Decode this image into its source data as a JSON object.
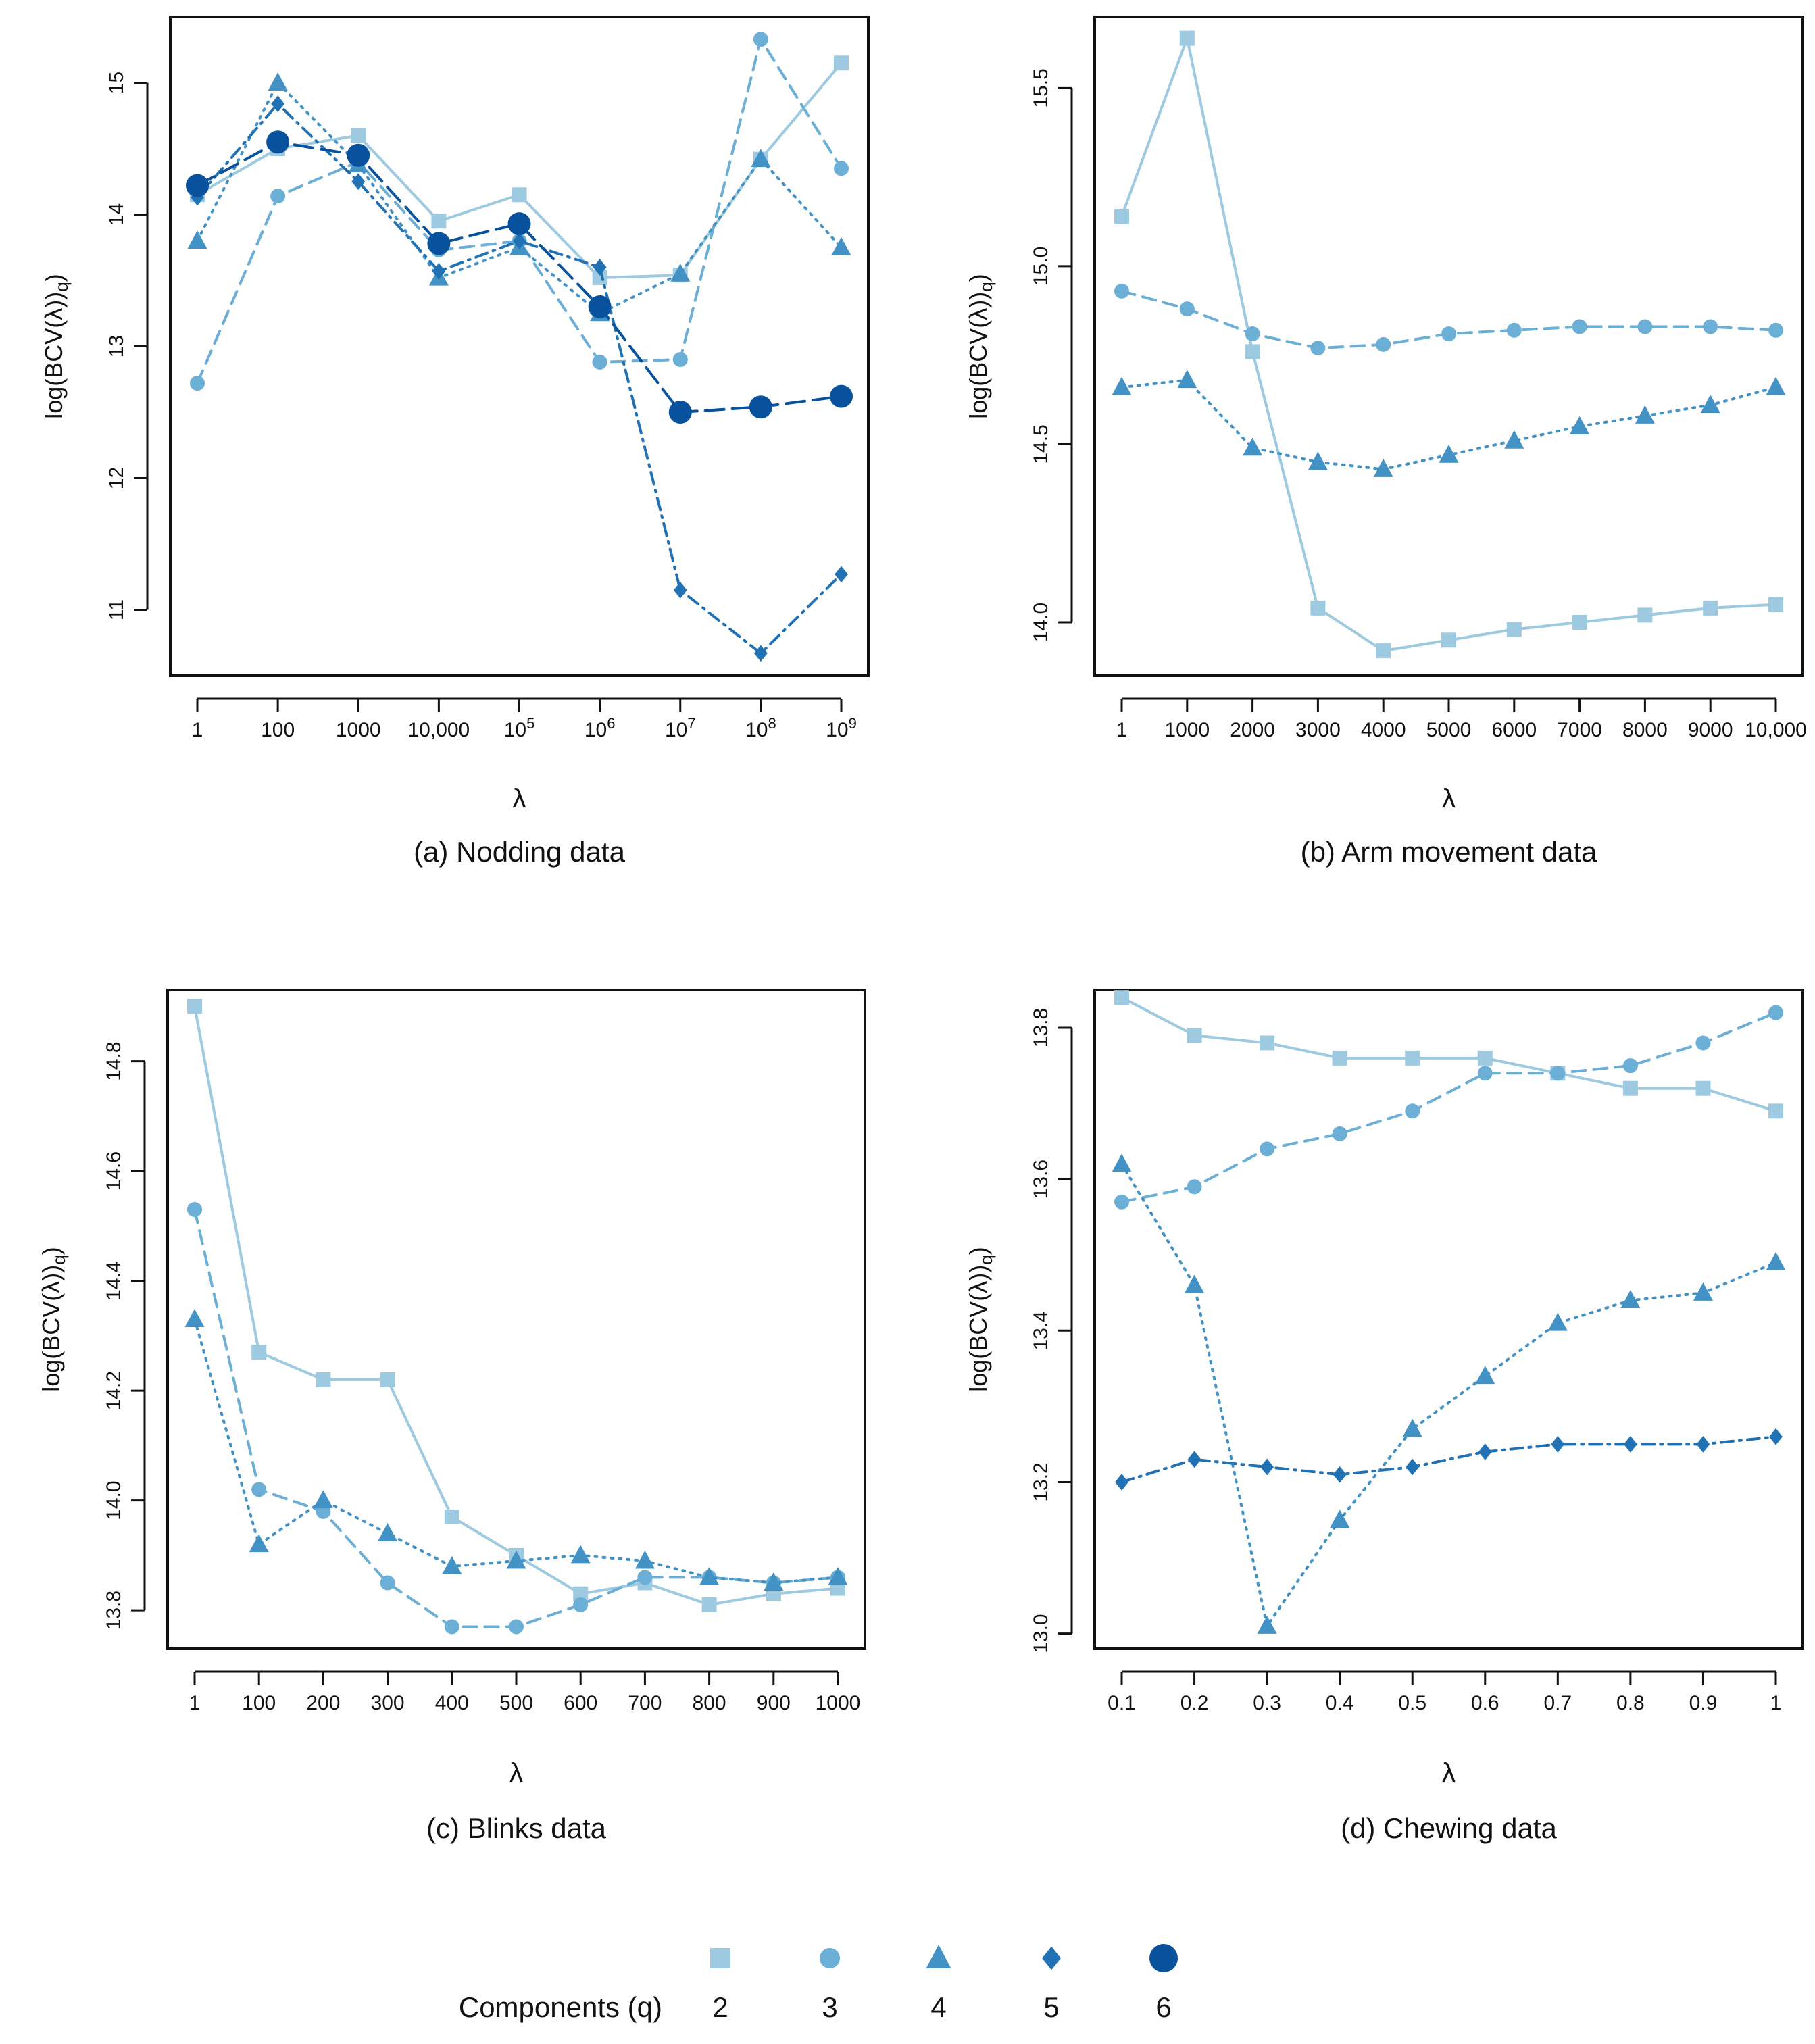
{
  "figure": {
    "legend_title": "Components (q)",
    "legend_entries": [
      {
        "q": "2",
        "marker": "square",
        "color": "#9ecae1"
      },
      {
        "q": "3",
        "marker": "circle",
        "color": "#6baed6"
      },
      {
        "q": "4",
        "marker": "triangle",
        "color": "#4292c6"
      },
      {
        "q": "5",
        "marker": "diamond",
        "color": "#2171b5"
      },
      {
        "q": "6",
        "marker": "big-circle",
        "color": "#08519c"
      }
    ],
    "y_axis_label_base": "log(BCV(λ)",
    "y_axis_label_sub": "q",
    "y_axis_label_close": ")"
  },
  "chart_data": [
    {
      "type": "line",
      "caption": "(a) Nodding data",
      "xlabel": "λ",
      "ylabel": "log(BCV(λ)q)",
      "ylim": [
        10.5,
        15.5
      ],
      "yticks": [
        "11",
        "12",
        "13",
        "14",
        "15"
      ],
      "ytick_values": [
        11,
        12,
        13,
        14,
        15
      ],
      "x_ticks": [
        {
          "base": "1",
          "exp": ""
        },
        {
          "base": "100",
          "exp": ""
        },
        {
          "base": "1000",
          "exp": ""
        },
        {
          "base": "10,000",
          "exp": ""
        },
        {
          "base": "10",
          "exp": "5"
        },
        {
          "base": "10",
          "exp": "6"
        },
        {
          "base": "10",
          "exp": "7"
        },
        {
          "base": "10",
          "exp": "8"
        },
        {
          "base": "10",
          "exp": "9"
        }
      ],
      "series": [
        {
          "q": "2",
          "values": [
            14.15,
            14.5,
            14.6,
            13.95,
            14.15,
            13.52,
            13.54,
            14.42,
            15.15
          ]
        },
        {
          "q": "3",
          "values": [
            12.72,
            14.14,
            14.4,
            13.73,
            13.8,
            12.88,
            12.9,
            15.33,
            14.35
          ]
        },
        {
          "q": "4",
          "values": [
            13.8,
            15.0,
            14.38,
            13.52,
            13.75,
            13.25,
            13.55,
            14.42,
            13.75
          ]
        },
        {
          "q": "5",
          "values": [
            14.13,
            14.84,
            14.25,
            13.57,
            13.8,
            13.6,
            11.15,
            10.67,
            11.27
          ]
        },
        {
          "q": "6",
          "values": [
            14.22,
            14.55,
            14.45,
            13.78,
            13.93,
            13.3,
            12.5,
            12.54,
            12.62
          ]
        }
      ]
    },
    {
      "type": "line",
      "caption": "(b) Arm movement data",
      "xlabel": "λ",
      "ylabel": "log(BCV(λ)q)",
      "ylim": [
        13.85,
        15.7
      ],
      "yticks": [
        "14.0",
        "14.5",
        "15.0",
        "15.5"
      ],
      "ytick_values": [
        14.0,
        14.5,
        15.0,
        15.5
      ],
      "x_ticks": [
        {
          "base": "1",
          "exp": ""
        },
        {
          "base": "1000",
          "exp": ""
        },
        {
          "base": "2000",
          "exp": ""
        },
        {
          "base": "3000",
          "exp": ""
        },
        {
          "base": "4000",
          "exp": ""
        },
        {
          "base": "5000",
          "exp": ""
        },
        {
          "base": "6000",
          "exp": ""
        },
        {
          "base": "7000",
          "exp": ""
        },
        {
          "base": "8000",
          "exp": ""
        },
        {
          "base": "9000",
          "exp": ""
        },
        {
          "base": "10,000",
          "exp": ""
        }
      ],
      "series": [
        {
          "q": "2",
          "values": [
            15.14,
            15.64,
            14.76,
            14.04,
            13.92,
            13.95,
            13.98,
            14.0,
            14.02,
            14.04,
            14.05
          ]
        },
        {
          "q": "3",
          "values": [
            14.93,
            14.88,
            14.81,
            14.77,
            14.78,
            14.81,
            14.82,
            14.83,
            14.83,
            14.83,
            14.82
          ]
        },
        {
          "q": "4",
          "values": [
            14.66,
            14.68,
            14.49,
            14.45,
            14.43,
            14.47,
            14.51,
            14.55,
            14.58,
            14.61,
            14.66
          ]
        }
      ]
    },
    {
      "type": "line",
      "caption": "(c) Blinks data",
      "xlabel": "λ",
      "ylabel": "log(BCV(λ)q)",
      "ylim": [
        13.73,
        14.93
      ],
      "yticks": [
        "13.8",
        "14.0",
        "14.2",
        "14.4",
        "14.6",
        "14.8"
      ],
      "ytick_values": [
        13.8,
        14.0,
        14.2,
        14.4,
        14.6,
        14.8
      ],
      "x_ticks": [
        {
          "base": "1",
          "exp": ""
        },
        {
          "base": "100",
          "exp": ""
        },
        {
          "base": "200",
          "exp": ""
        },
        {
          "base": "300",
          "exp": ""
        },
        {
          "base": "400",
          "exp": ""
        },
        {
          "base": "500",
          "exp": ""
        },
        {
          "base": "600",
          "exp": ""
        },
        {
          "base": "700",
          "exp": ""
        },
        {
          "base": "800",
          "exp": ""
        },
        {
          "base": "900",
          "exp": ""
        },
        {
          "base": "1000",
          "exp": ""
        }
      ],
      "series": [
        {
          "q": "2",
          "values": [
            14.9,
            14.27,
            14.22,
            14.22,
            13.97,
            13.9,
            13.83,
            13.85,
            13.81,
            13.83,
            13.84
          ]
        },
        {
          "q": "3",
          "values": [
            14.53,
            14.02,
            13.98,
            13.85,
            13.77,
            13.77,
            13.81,
            13.86,
            13.86,
            13.85,
            13.86
          ]
        },
        {
          "q": "4",
          "values": [
            14.33,
            13.92,
            14.0,
            13.94,
            13.88,
            13.89,
            13.9,
            13.89,
            13.86,
            13.85,
            13.86
          ]
        }
      ]
    },
    {
      "type": "line",
      "caption": "(d) Chewing data",
      "xlabel": "λ",
      "ylabel": "log(BCV(λ)q)",
      "ylim": [
        12.98,
        13.85
      ],
      "yticks": [
        "13.0",
        "13.2",
        "13.4",
        "13.6",
        "13.8"
      ],
      "ytick_values": [
        13.0,
        13.2,
        13.4,
        13.6,
        13.8
      ],
      "x_ticks": [
        {
          "base": "0.1",
          "exp": ""
        },
        {
          "base": "0.2",
          "exp": ""
        },
        {
          "base": "0.3",
          "exp": ""
        },
        {
          "base": "0.4",
          "exp": ""
        },
        {
          "base": "0.5",
          "exp": ""
        },
        {
          "base": "0.6",
          "exp": ""
        },
        {
          "base": "0.7",
          "exp": ""
        },
        {
          "base": "0.8",
          "exp": ""
        },
        {
          "base": "0.9",
          "exp": ""
        },
        {
          "base": "1",
          "exp": ""
        }
      ],
      "series": [
        {
          "q": "2",
          "values": [
            13.84,
            13.79,
            13.78,
            13.76,
            13.76,
            13.76,
            13.74,
            13.72,
            13.72,
            13.69
          ]
        },
        {
          "q": "3",
          "values": [
            13.57,
            13.59,
            13.64,
            13.66,
            13.69,
            13.74,
            13.74,
            13.75,
            13.78,
            13.82
          ]
        },
        {
          "q": "4",
          "values": [
            13.62,
            13.46,
            13.01,
            13.15,
            13.27,
            13.34,
            13.41,
            13.44,
            13.45,
            13.49
          ]
        },
        {
          "q": "5",
          "values": [
            13.2,
            13.23,
            13.22,
            13.21,
            13.22,
            13.24,
            13.25,
            13.25,
            13.25,
            13.26
          ]
        }
      ]
    }
  ]
}
